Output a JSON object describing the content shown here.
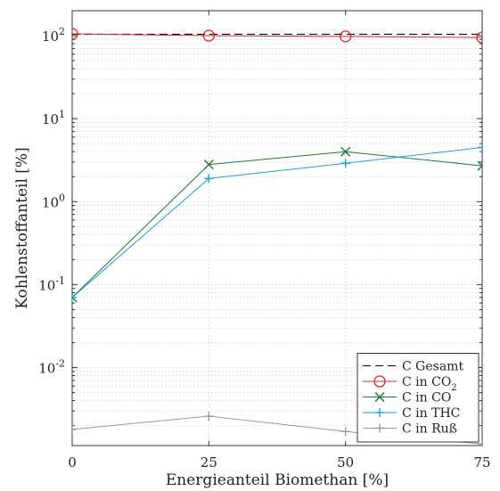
{
  "chart_data": {
    "type": "line",
    "xlabel": "Energieanteil Biomethan [%]",
    "ylabel": "Kohlenstoffanteil [%]",
    "x": [
      0,
      25,
      50,
      75
    ],
    "xlim": [
      0,
      75
    ],
    "xticks": [
      "0",
      "25",
      "50",
      "75"
    ],
    "yscale": "log",
    "ylim": [
      0.00115,
      200
    ],
    "yticks": [
      {
        "value": 0.01,
        "base": "10",
        "exp": "-2"
      },
      {
        "value": 0.1,
        "base": "10",
        "exp": "-1"
      },
      {
        "value": 1,
        "base": "10",
        "exp": "0"
      },
      {
        "value": 10,
        "base": "10",
        "exp": "1"
      },
      {
        "value": 100,
        "base": "10",
        "exp": "2"
      }
    ],
    "grid": true,
    "legend_position": "bottom-right",
    "series": [
      {
        "name": "C Gesamt",
        "legend_main": "C Gesamt",
        "legend_sub": "",
        "x": [
          0,
          25,
          50,
          75
        ],
        "values": [
          104,
          104,
          104,
          104
        ],
        "color": "#000000",
        "dash": true,
        "marker": "none"
      },
      {
        "name": "C in CO2",
        "legend_main": "C in CO",
        "legend_sub": "2",
        "x": [
          0,
          25,
          50,
          75
        ],
        "values": [
          105,
          100,
          98,
          95
        ],
        "color": "#d62728",
        "dash": false,
        "marker": "circle"
      },
      {
        "name": "C in CO",
        "legend_main": "C in CO",
        "legend_sub": "",
        "x": [
          0,
          25,
          50,
          75
        ],
        "values": [
          0.07,
          2.8,
          4.0,
          2.7
        ],
        "color": "#1a7a36",
        "dash": false,
        "marker": "x"
      },
      {
        "name": "C in THC",
        "legend_main": "C in THC",
        "legend_sub": "",
        "x": [
          0,
          25,
          50,
          75
        ],
        "values": [
          0.07,
          1.9,
          2.9,
          4.5
        ],
        "color": "#1f9fd8",
        "dash": false,
        "marker": "plus"
      },
      {
        "name": "C in Ruß",
        "legend_main": "C in Ruß",
        "legend_sub": "",
        "x": [
          0,
          25,
          50,
          75
        ],
        "values": [
          0.0018,
          0.0026,
          0.0017,
          0.0012
        ],
        "color": "#999999",
        "dash": false,
        "marker": "plus"
      }
    ]
  }
}
